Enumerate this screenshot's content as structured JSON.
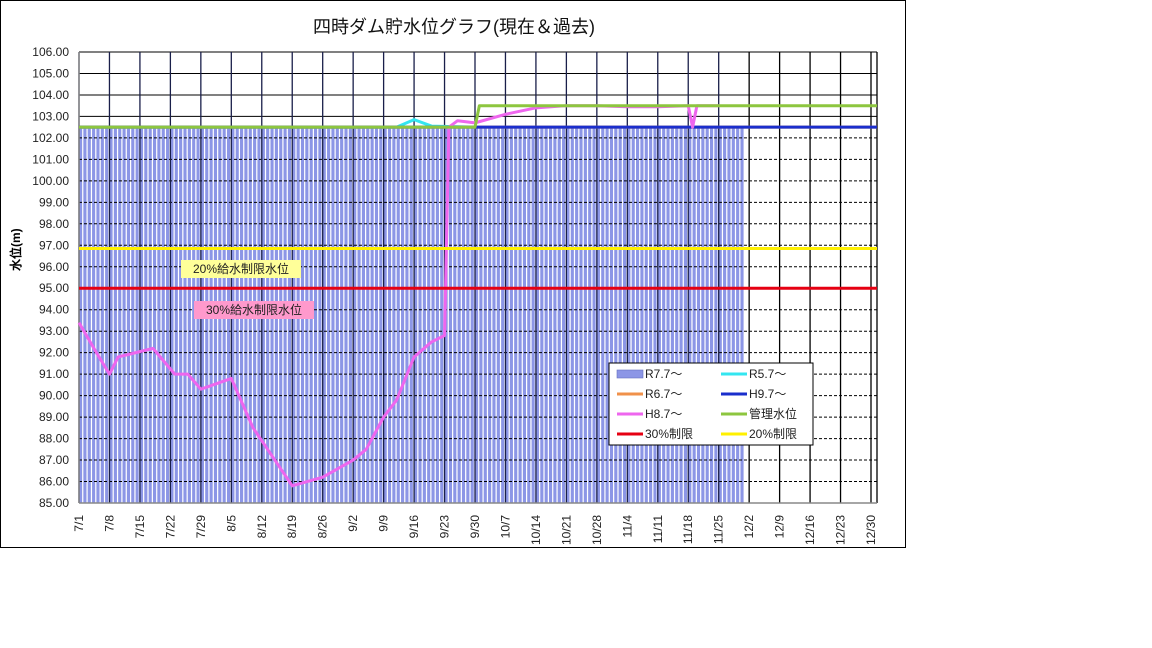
{
  "chart_data": {
    "type": "line",
    "title": "四時ダム貯水位グラフ(現在＆過去)",
    "xlabel": "",
    "ylabel": "水位(m)",
    "ylim": [
      85,
      106
    ],
    "ytick_step": 1,
    "yticks": [
      "85.00",
      "86.00",
      "87.00",
      "88.00",
      "89.00",
      "90.00",
      "91.00",
      "92.00",
      "93.00",
      "94.00",
      "95.00",
      "96.00",
      "97.00",
      "98.00",
      "99.00",
      "100.00",
      "101.00",
      "102.00",
      "103.00",
      "104.00",
      "105.00",
      "106.00"
    ],
    "xticks": [
      "7/1",
      "7/8",
      "7/15",
      "7/22",
      "7/29",
      "8/5",
      "8/12",
      "8/19",
      "8/26",
      "9/2",
      "9/9",
      "9/16",
      "9/23",
      "9/30",
      "10/7",
      "10/14",
      "10/21",
      "10/28",
      "11/4",
      "11/11",
      "11/18",
      "11/25",
      "12/2",
      "12/9",
      "12/16",
      "12/23",
      "12/30"
    ],
    "grid": true,
    "legend_position": "inside-lower-right",
    "series": [
      {
        "name": "R7.7〜",
        "kind": "bar",
        "color": "#8C96E6",
        "x": [
          "7/1",
          "12/1"
        ],
        "values": [
          102.5,
          102.5
        ],
        "note": "daily bars ~102.5 from 7/1 to ~12/1"
      },
      {
        "name": "R5.7〜",
        "kind": "line",
        "color": "#33E6F0",
        "x": [
          "7/1",
          "9/12",
          "9/16",
          "9/20",
          "9/30"
        ],
        "values": [
          102.5,
          102.5,
          102.85,
          102.55,
          102.5
        ]
      },
      {
        "name": "R6.7〜",
        "kind": "line",
        "color": "#F0914A",
        "x": [
          "7/1",
          "12/30"
        ],
        "values": [
          102.5,
          102.5
        ]
      },
      {
        "name": "H9.7〜",
        "kind": "line",
        "color": "#1A2ECC",
        "x": [
          "7/1",
          "12/30"
        ],
        "values": [
          102.5,
          102.5
        ]
      },
      {
        "name": "H8.7〜",
        "kind": "line",
        "color": "#EE66EE",
        "x": [
          "7/1",
          "7/5",
          "7/8",
          "7/10",
          "7/18",
          "7/23",
          "7/26",
          "7/29",
          "8/5",
          "8/10",
          "8/15",
          "8/19",
          "8/26",
          "9/2",
          "9/5",
          "9/9",
          "9/12",
          "9/16",
          "9/20",
          "9/23",
          "9/24",
          "9/26",
          "9/30",
          "10/7",
          "10/14",
          "10/21",
          "10/28",
          "11/4",
          "11/11",
          "11/18",
          "11/19",
          "11/20",
          "11/25"
        ],
        "values": [
          93.4,
          92.0,
          91.0,
          91.8,
          92.2,
          91.0,
          91.0,
          90.3,
          90.8,
          88.5,
          87.0,
          85.8,
          86.2,
          87.0,
          87.5,
          89.0,
          89.8,
          91.8,
          92.5,
          92.8,
          102.5,
          102.8,
          102.7,
          103.1,
          103.4,
          103.5,
          103.5,
          103.45,
          103.45,
          103.5,
          102.5,
          103.5,
          103.5
        ]
      },
      {
        "name": "管理水位",
        "kind": "line",
        "color": "#8DC63F",
        "x": [
          "7/1",
          "9/30",
          "10/1",
          "12/30"
        ],
        "values": [
          102.5,
          102.5,
          103.5,
          103.5
        ]
      },
      {
        "name": "30%制限",
        "kind": "line",
        "color": "#E60012",
        "x": [
          "7/1",
          "12/30"
        ],
        "values": [
          95.0,
          95.0
        ]
      },
      {
        "name": "20%制限",
        "kind": "line",
        "color": "#FFF000",
        "x": [
          "7/1",
          "12/30"
        ],
        "values": [
          96.85,
          96.85
        ]
      }
    ],
    "annotations": [
      {
        "text": "20%給水制限水位",
        "bg": "#FFFF99",
        "y": 96.0
      },
      {
        "text": "30%給水制限水位",
        "bg": "#FF99CC",
        "y": 94.0
      }
    ]
  },
  "legend": [
    {
      "label": "R7.7〜",
      "color": "#8C96E6",
      "swatch": "box"
    },
    {
      "label": "R5.7〜",
      "color": "#33E6F0",
      "swatch": "line"
    },
    {
      "label": "R6.7〜",
      "color": "#F0914A",
      "swatch": "line"
    },
    {
      "label": "H9.7〜",
      "color": "#1A2ECC",
      "swatch": "line"
    },
    {
      "label": "H8.7〜",
      "color": "#EE66EE",
      "swatch": "line"
    },
    {
      "label": "管理水位",
      "color": "#8DC63F",
      "swatch": "line"
    },
    {
      "label": "30%制限",
      "color": "#E60012",
      "swatch": "line"
    },
    {
      "label": "20%制限",
      "color": "#FFF000",
      "swatch": "line"
    }
  ]
}
